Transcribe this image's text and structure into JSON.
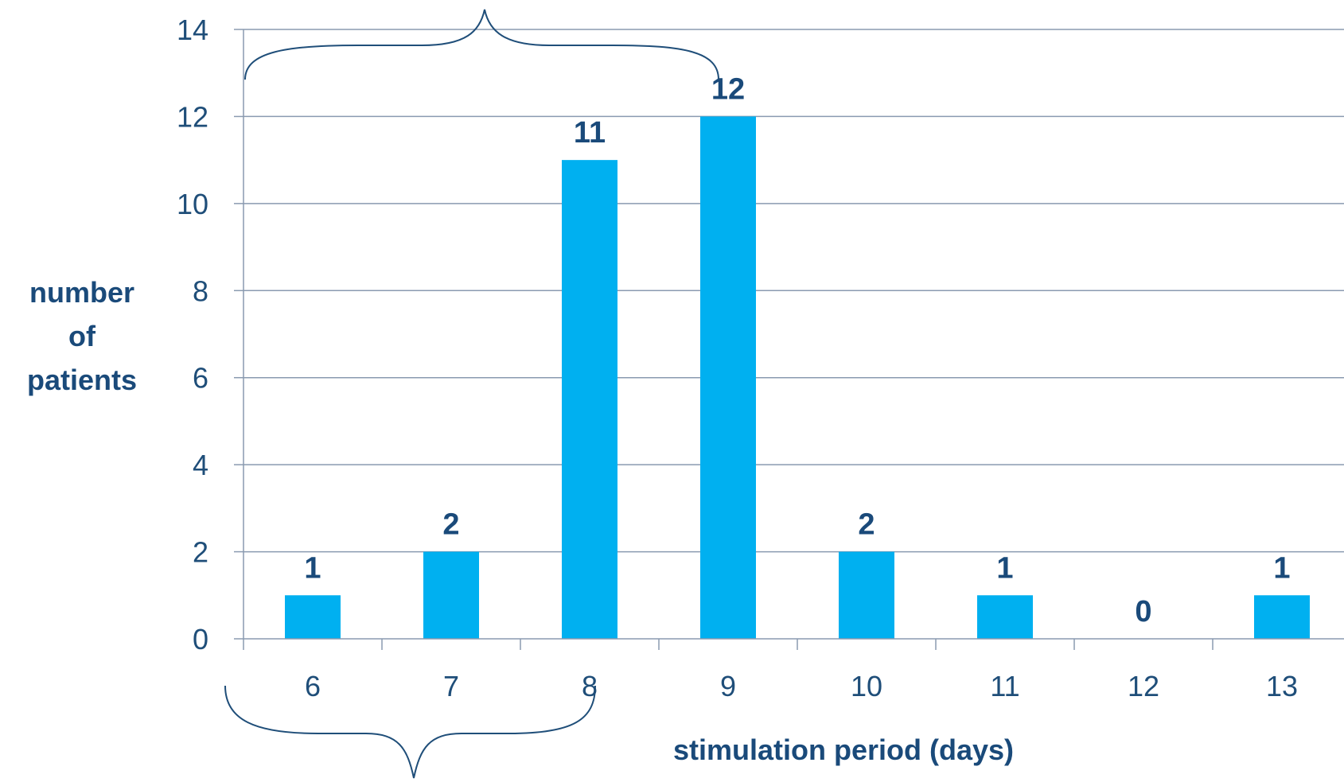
{
  "chart_data": {
    "type": "bar",
    "title": "",
    "xlabel": "stimulation period (days)",
    "ylabel": [
      "number",
      "of",
      "patients"
    ],
    "categories": [
      "6",
      "7",
      "8",
      "9",
      "10",
      "11",
      "12",
      "13"
    ],
    "values": [
      1,
      2,
      11,
      12,
      2,
      1,
      0,
      1
    ],
    "ylim": [
      0,
      14
    ],
    "yticks": [
      "0",
      "2",
      "4",
      "6",
      "8",
      "10",
      "12",
      "14"
    ],
    "grid": true,
    "legend": "none",
    "data_labels": true,
    "bar_color": "#00b0f0",
    "annotations": [
      "brace spanning days 6-8 above the bars",
      "brace spanning days 6-8 below the axis labels"
    ]
  },
  "colors": {
    "bar": "#00b0f0",
    "text": "#1f4e79",
    "label": "#1a4a7a",
    "grid": "#8a9ab0",
    "brace": "#1f4e79"
  }
}
